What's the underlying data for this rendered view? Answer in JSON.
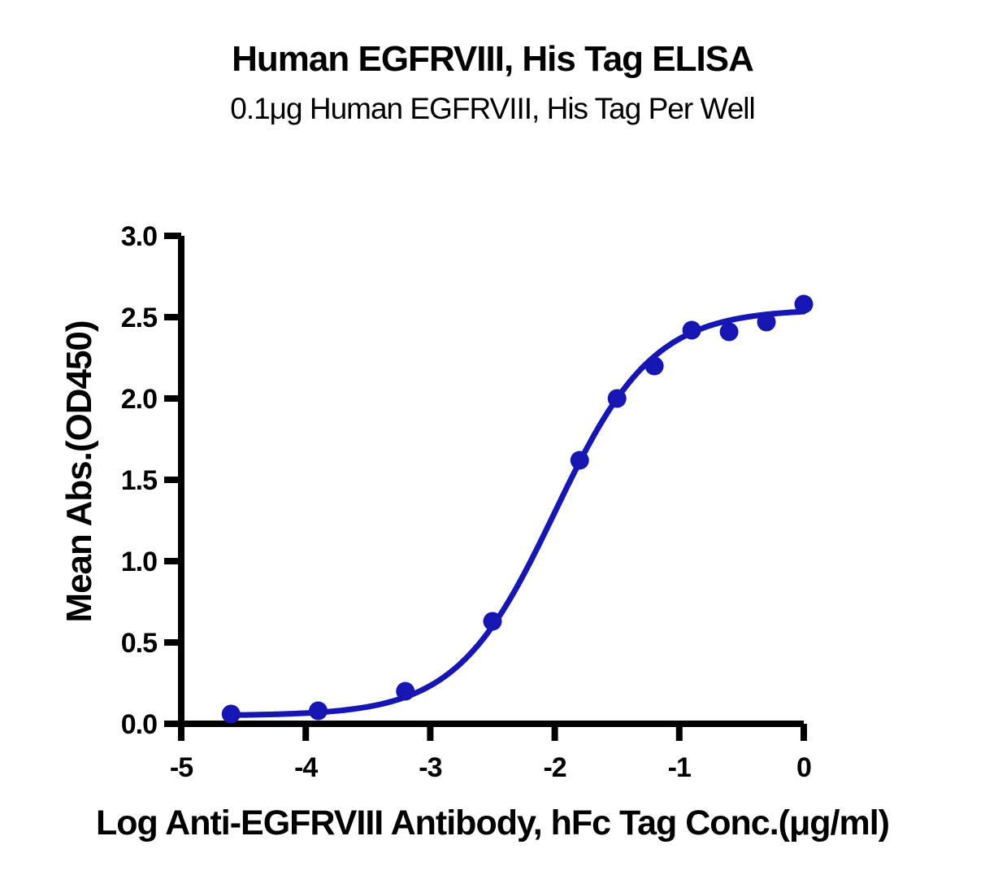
{
  "chart_data": {
    "type": "scatter",
    "title": "Human EGFRVIII, His Tag ELISA",
    "subtitle": "0.1μg Human EGFRVIII, His Tag Per Well",
    "xlabel": "Log Anti-EGFRVIII Antibody, hFc Tag Conc.(μg/ml)",
    "ylabel": "Mean Abs.(OD450)",
    "xlim": [
      -5,
      0
    ],
    "ylim": [
      0,
      3
    ],
    "x_ticks": [
      "-5",
      "-4",
      "-3",
      "-2",
      "-1",
      "0"
    ],
    "x_tick_values": [
      -5,
      -4,
      -3,
      -2,
      -1,
      0
    ],
    "y_ticks": [
      "0.0",
      "0.5",
      "1.0",
      "1.5",
      "2.0",
      "2.5",
      "3.0"
    ],
    "y_tick_values": [
      0,
      0.5,
      1.0,
      1.5,
      2.0,
      2.5,
      3.0
    ],
    "grid": false,
    "legend": "none",
    "series": [
      {
        "name": "Anti-EGFRVIII Antibody, hFc Tag",
        "x": [
          -4.6,
          -3.9,
          -3.2,
          -2.5,
          -1.8,
          -1.5,
          -1.2,
          -0.9,
          -0.6,
          -0.3,
          0.0
        ],
        "y": [
          0.06,
          0.08,
          0.2,
          0.63,
          1.62,
          2.0,
          2.2,
          2.42,
          2.41,
          2.47,
          2.58
        ]
      }
    ],
    "fit_curve": {
      "model": "4PL sigmoid",
      "bottom": 0.05,
      "top": 2.55,
      "logEC50": -2.0,
      "hillslope": 1.1,
      "x_start": -4.6,
      "x_end": 0.0
    },
    "colors": {
      "curve": "#1616b2",
      "points": "#1616b2",
      "axis": "#000000",
      "text": "#000000",
      "background": "#ffffff"
    }
  }
}
